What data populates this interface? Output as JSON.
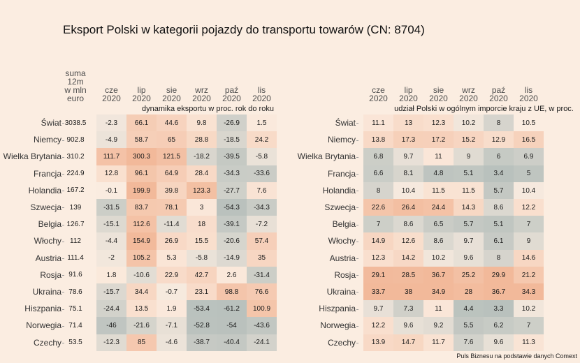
{
  "title": "Eksport Polski w kategorii pojazdy do transportu towarów (CN: 8704)",
  "source": "Puls Biznesu na podstawie danych Comext",
  "colors": {
    "background": "#fbede1",
    "low": "#b9c1bd",
    "mid": "#fbede1",
    "high": "#f2b99a"
  },
  "countries": [
    "Świat",
    "Niemcy",
    "Wielka Brytania",
    "Francja",
    "Holandia",
    "Szwecja",
    "Belgia",
    "Włochy",
    "Austria",
    "Rosja",
    "Ukraina",
    "Hiszpania",
    "Norwegia",
    "Czechy"
  ],
  "months": [
    {
      "m": "cze",
      "y": "2020"
    },
    {
      "m": "lip",
      "y": "2020"
    },
    {
      "m": "sie",
      "y": "2020"
    },
    {
      "m": "wrz",
      "y": "2020"
    },
    {
      "m": "paź",
      "y": "2020"
    },
    {
      "m": "lis",
      "y": "2020"
    }
  ],
  "left": {
    "sum_header": [
      "suma",
      "12m",
      "w mln",
      "euro"
    ],
    "subtitle": "dynamika eksportu w proc. rok do roku",
    "sums": [
      "3038.5",
      "902.8",
      "310.2",
      "224.9",
      "167.2",
      "139",
      "126.7",
      "112",
      "111.4",
      "91.6",
      "78.6",
      "75.1",
      "71.4",
      "53.5"
    ]
  },
  "right": {
    "subtitle": "udział Polski w ogólnym imporcie kraju z UE, w proc."
  },
  "chart_data": [
    {
      "type": "heatmap",
      "title": "dynamika eksportu w proc. rok do roku",
      "rows": [
        "Świat",
        "Niemcy",
        "Wielka Brytania",
        "Francja",
        "Holandia",
        "Szwecja",
        "Belgia",
        "Włochy",
        "Austria",
        "Rosja",
        "Ukraina",
        "Hiszpania",
        "Norwegia",
        "Czechy"
      ],
      "columns": [
        "cze 2020",
        "lip 2020",
        "sie 2020",
        "wrz 2020",
        "paź 2020",
        "lis 2020"
      ],
      "extra_column": {
        "label": "suma 12m w mln euro",
        "values": [
          3038.5,
          902.8,
          310.2,
          224.9,
          167.2,
          139,
          126.7,
          112,
          111.4,
          91.6,
          78.6,
          75.1,
          71.4,
          53.5
        ]
      },
      "values": [
        [
          -2.3,
          66.1,
          44.6,
          9.8,
          -26.9,
          1.5
        ],
        [
          -4.9,
          58.7,
          65,
          28.8,
          -18.5,
          24.2
        ],
        [
          111.7,
          300.3,
          121.5,
          -18.2,
          -39.5,
          -5.8
        ],
        [
          12.8,
          96.1,
          64.9,
          28.4,
          -34.3,
          -33.6
        ],
        [
          -0.1,
          199.9,
          39.8,
          123.3,
          -27.7,
          7.6
        ],
        [
          -31.5,
          83.7,
          78.1,
          3,
          -54.3,
          -34.3
        ],
        [
          -15.1,
          112.6,
          -11.4,
          18,
          -39.1,
          -7.2
        ],
        [
          -4.4,
          154.9,
          26.9,
          15.5,
          -20.6,
          57.4
        ],
        [
          -2,
          105.2,
          5.3,
          -5.8,
          -14.9,
          35
        ],
        [
          1.8,
          -10.6,
          22.9,
          42.7,
          2.6,
          -31.4
        ],
        [
          -15.7,
          34.4,
          -0.7,
          23.1,
          98.8,
          76.6
        ],
        [
          -24.4,
          13.5,
          1.9,
          -53.4,
          -61.2,
          100.9
        ],
        [
          -46,
          -21.6,
          -7.1,
          -52.8,
          -54,
          -43.6
        ],
        [
          -12.3,
          85,
          -4.6,
          -38.7,
          -40.4,
          -24.1
        ]
      ],
      "color_scale": {
        "type": "diverging",
        "midpoint": 0,
        "low": "#b9c1bd",
        "mid": "#fbede1",
        "high": "#f2b99a"
      }
    },
    {
      "type": "heatmap",
      "title": "udział Polski w ogólnym imporcie kraju z UE, w proc.",
      "rows": [
        "Świat",
        "Niemcy",
        "Wielka Brytania",
        "Francja",
        "Holandia",
        "Szwecja",
        "Belgia",
        "Włochy",
        "Austria",
        "Rosja",
        "Ukraina",
        "Hiszpania",
        "Norwegia",
        "Czechy"
      ],
      "columns": [
        "cze 2020",
        "lip 2020",
        "sie 2020",
        "wrz 2020",
        "paź 2020",
        "lis 2020"
      ],
      "values": [
        [
          11.1,
          13,
          12.3,
          10.2,
          8,
          10.5
        ],
        [
          13.8,
          17.3,
          17.2,
          15.2,
          12.9,
          16.5
        ],
        [
          6.8,
          9.7,
          11,
          9,
          6,
          6.9
        ],
        [
          6.6,
          8.1,
          4.8,
          5.1,
          3.4,
          5
        ],
        [
          8,
          10.4,
          11.5,
          11.5,
          5.7,
          10.4
        ],
        [
          22.6,
          26.4,
          24.4,
          14.3,
          8.6,
          12.2
        ],
        [
          7,
          8.6,
          6.5,
          5.7,
          5.1,
          7
        ],
        [
          14.9,
          12.6,
          8.6,
          9.7,
          6.1,
          9
        ],
        [
          12.3,
          14.2,
          10.2,
          9.6,
          8,
          14.6
        ],
        [
          29.1,
          28.5,
          36.7,
          25.2,
          29.9,
          21.2
        ],
        [
          33.7,
          38,
          34.9,
          28,
          36.7,
          34.3
        ],
        [
          9.7,
          7.3,
          11,
          4.4,
          3.3,
          10.2
        ],
        [
          12.2,
          9.6,
          9.2,
          5.5,
          6.2,
          7
        ],
        [
          13.9,
          14.7,
          11.7,
          7.6,
          9.6,
          11.3
        ]
      ],
      "color_scale": {
        "type": "diverging",
        "midpoint": 10.5,
        "low": "#b9c1bd",
        "mid": "#fbede1",
        "high": "#f2b99a"
      }
    }
  ]
}
